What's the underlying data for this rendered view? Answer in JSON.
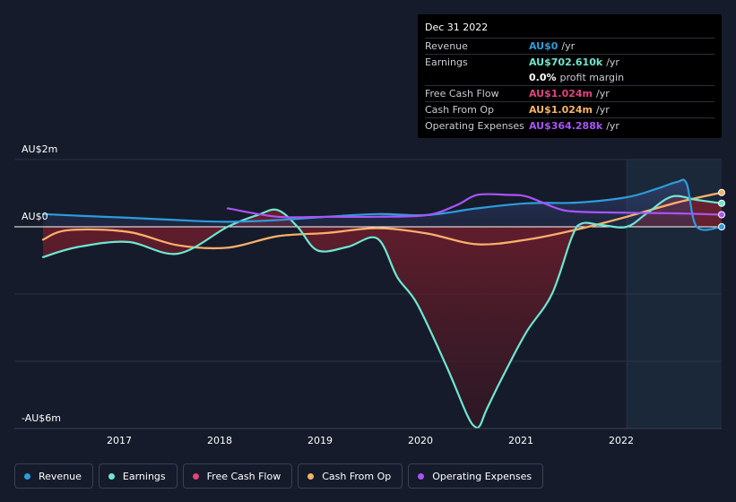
{
  "colors": {
    "revenue": "#2d9cdb",
    "earnings": "#6ee7d0",
    "fcf": "#e0457b",
    "cfo": "#f5b267",
    "opex": "#a855f7"
  },
  "tooltip": {
    "date": "Dec 31 2022",
    "rows": [
      {
        "label": "Revenue",
        "value": "AU$0",
        "unit": "/yr",
        "color": "#2d9cdb"
      },
      {
        "label": "Earnings",
        "value": "AU$702.610k",
        "unit": "/yr",
        "color": "#6ee7d0"
      },
      {
        "label": "",
        "value": "0.0%",
        "unit": "profit margin",
        "color": "#ffffff"
      },
      {
        "label": "Free Cash Flow",
        "value": "AU$1.024m",
        "unit": "/yr",
        "color": "#e0457b"
      },
      {
        "label": "Cash From Op",
        "value": "AU$1.024m",
        "unit": "/yr",
        "color": "#f5b267"
      },
      {
        "label": "Operating Expenses",
        "value": "AU$364.288k",
        "unit": "/yr",
        "color": "#a855f7"
      }
    ]
  },
  "legend": [
    {
      "label": "Revenue",
      "color": "#2d9cdb"
    },
    {
      "label": "Earnings",
      "color": "#6ee7d0"
    },
    {
      "label": "Free Cash Flow",
      "color": "#e0457b"
    },
    {
      "label": "Cash From Op",
      "color": "#f5b267"
    },
    {
      "label": "Operating Expenses",
      "color": "#a855f7"
    }
  ],
  "chart_data": {
    "type": "line",
    "title": "",
    "xlabel": "",
    "ylabel": "",
    "ylabels": {
      "top": "AU$2m",
      "zero": "AU$0",
      "bottom": "-AU$6m"
    },
    "ylim": [
      -6,
      2
    ],
    "xlim": [
      2016.15,
      2022.95
    ],
    "xticks": [
      2017,
      2018,
      2019,
      2020,
      2021,
      2022
    ],
    "xtick_labels": [
      "2017",
      "2018",
      "2019",
      "2020",
      "2021",
      "2022"
    ],
    "forecast_start": 2022.0,
    "series": [
      {
        "name": "Revenue",
        "key": "revenue",
        "x": [
          2016.15,
          2016.5,
          2017.0,
          2017.5,
          2018.0,
          2018.5,
          2019.0,
          2019.5,
          2020.0,
          2020.5,
          2021.0,
          2021.5,
          2022.0,
          2022.3,
          2022.5,
          2022.6,
          2022.7,
          2022.95
        ],
        "y": [
          0.38,
          0.33,
          0.27,
          0.2,
          0.15,
          0.2,
          0.3,
          0.38,
          0.35,
          0.55,
          0.7,
          0.72,
          0.88,
          1.13,
          1.33,
          1.28,
          0.0,
          0.0
        ]
      },
      {
        "name": "Earnings",
        "key": "earnings",
        "x": [
          2016.15,
          2016.5,
          2017.0,
          2017.5,
          2018.0,
          2018.3,
          2018.5,
          2018.7,
          2018.9,
          2019.2,
          2019.5,
          2019.7,
          2019.9,
          2020.2,
          2020.4,
          2020.48,
          2020.53,
          2020.6,
          2020.8,
          2021.0,
          2021.25,
          2021.45,
          2021.55,
          2021.75,
          2022.0,
          2022.2,
          2022.45,
          2022.7,
          2022.95
        ],
        "y": [
          -0.9,
          -0.6,
          -0.45,
          -0.8,
          0.0,
          0.35,
          0.5,
          0.0,
          -0.7,
          -0.6,
          -0.35,
          -1.5,
          -2.3,
          -4.2,
          -5.6,
          -5.95,
          -5.9,
          -5.4,
          -4.2,
          -3.1,
          -2.0,
          -0.3,
          0.1,
          0.05,
          0.0,
          0.4,
          0.9,
          0.8,
          0.7
        ]
      },
      {
        "name": "Cash From Op",
        "key": "cfo",
        "x": [
          2016.15,
          2016.4,
          2017.0,
          2017.5,
          2018.0,
          2018.5,
          2019.0,
          2019.5,
          2020.0,
          2020.5,
          2021.0,
          2021.5,
          2022.0,
          2022.5,
          2022.95
        ],
        "y": [
          -0.38,
          -0.1,
          -0.15,
          -0.55,
          -0.62,
          -0.28,
          -0.18,
          -0.04,
          -0.2,
          -0.52,
          -0.38,
          -0.08,
          0.3,
          0.72,
          1.02
        ]
      },
      {
        "name": "Operating Expenses",
        "key": "opex",
        "x": [
          2018.0,
          2018.5,
          2019.0,
          2019.5,
          2020.0,
          2020.3,
          2020.5,
          2020.8,
          2021.0,
          2021.3,
          2021.5,
          2022.0,
          2022.5,
          2022.95
        ],
        "y": [
          0.55,
          0.3,
          0.3,
          0.3,
          0.35,
          0.65,
          0.95,
          0.95,
          0.9,
          0.55,
          0.45,
          0.42,
          0.4,
          0.36
        ]
      },
      {
        "name": "Free Cash Flow",
        "key": "fcf",
        "x": [
          2016.15,
          2016.4,
          2017.0,
          2017.5,
          2018.0,
          2018.5,
          2019.0,
          2019.5,
          2020.0,
          2020.5,
          2021.0,
          2021.5,
          2022.0,
          2022.5,
          2022.95
        ],
        "y": [
          -0.38,
          -0.1,
          -0.15,
          -0.55,
          -0.62,
          -0.28,
          -0.18,
          -0.04,
          -0.2,
          -0.52,
          -0.38,
          -0.08,
          0.3,
          0.72,
          1.02
        ]
      }
    ]
  }
}
